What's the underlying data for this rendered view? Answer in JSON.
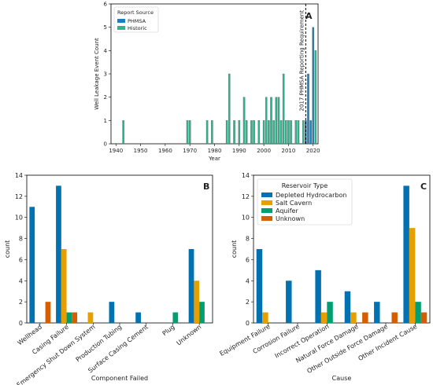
{
  "panels": {
    "A": {
      "letter": "A"
    },
    "B": {
      "letter": "B"
    },
    "C": {
      "letter": "C"
    }
  },
  "colors": {
    "phmsa": "#1a80bb",
    "historic": "#2fb58e",
    "depleted": "#0072b2",
    "salt": "#e69f00",
    "aquifer": "#009e73",
    "unknown": "#d55e00"
  },
  "chart_data": [
    {
      "id": "A",
      "type": "bar",
      "ylabel": "Well Leakage Event Count",
      "xlabel": "Year",
      "xlim": [
        1938,
        2022
      ],
      "ylim": [
        0,
        6
      ],
      "xticks": [
        1940,
        1950,
        1960,
        1970,
        1980,
        1990,
        2000,
        2010,
        2020
      ],
      "yticks": [
        0,
        1,
        2,
        3,
        4,
        5,
        6
      ],
      "legend_title": "Report Source",
      "legend_position": "top-left",
      "annotation": "2017 PHMSA Reporting Requirement",
      "annotation_x": 2017,
      "series": [
        {
          "name": "PHMSA",
          "x": [
            2017,
            2018,
            2019,
            2020
          ],
          "values": [
            1,
            3,
            1,
            5
          ]
        },
        {
          "name": "Historic",
          "x": [
            1943,
            1969,
            1970,
            1977,
            1979,
            1985,
            1986,
            1988,
            1990,
            1992,
            1993,
            1995,
            1996,
            1998,
            2000,
            2001,
            2002,
            2003,
            2004,
            2005,
            2006,
            2007,
            2008,
            2009,
            2010,
            2011,
            2013,
            2014,
            2016,
            2021
          ],
          "values": [
            1,
            1,
            1,
            1,
            1,
            1,
            3,
            1,
            1,
            2,
            1,
            1,
            1,
            1,
            1,
            2,
            1,
            2,
            1,
            2,
            2,
            1,
            3,
            1,
            1,
            1,
            1,
            1,
            1,
            4
          ]
        }
      ]
    },
    {
      "id": "B",
      "type": "bar",
      "xlabel": "Component Failed",
      "ylabel": "count",
      "ylim": [
        0,
        14
      ],
      "yticks": [
        0,
        2,
        4,
        6,
        8,
        10,
        12,
        14
      ],
      "categories": [
        "Wellhead",
        "Casing Failure",
        "Emergency Shut Down System",
        "Production Tubing",
        "Surface Casing Cement",
        "Plug",
        "Unknown"
      ],
      "series": [
        {
          "key": "depleted",
          "values": [
            11,
            13,
            0,
            2,
            1,
            0,
            7
          ]
        },
        {
          "key": "salt",
          "values": [
            0,
            7,
            1,
            0,
            0,
            0,
            4
          ]
        },
        {
          "key": "aquifer",
          "values": [
            0,
            1,
            0,
            0,
            0,
            1,
            2
          ]
        },
        {
          "key": "unknown",
          "values": [
            2,
            1,
            0,
            0,
            0,
            0,
            0
          ]
        }
      ]
    },
    {
      "id": "C",
      "type": "bar",
      "xlabel": "Cause",
      "ylabel": "count",
      "ylim": [
        0,
        14
      ],
      "yticks": [
        0,
        2,
        4,
        6,
        8,
        10,
        12,
        14
      ],
      "legend_title": "Reservoir Type",
      "legend_position": "top-left",
      "categories": [
        "Equipment Failure",
        "Corrosion Failure",
        "Incorrect Operation",
        "Natural Force Damage",
        "Other Outside Force Damage",
        "Other Incident Cause"
      ],
      "series": [
        {
          "name": "Depleted Hydrocarbon",
          "key": "depleted",
          "values": [
            7,
            4,
            5,
            3,
            2,
            13
          ]
        },
        {
          "name": "Salt Cavern",
          "key": "salt",
          "values": [
            1,
            0,
            1,
            1,
            0,
            9
          ]
        },
        {
          "name": "Aquifer",
          "key": "aquifer",
          "values": [
            0,
            0,
            2,
            0,
            0,
            2
          ]
        },
        {
          "name": "Unknown",
          "key": "unknown",
          "values": [
            0,
            0,
            0,
            1,
            1,
            1
          ]
        }
      ]
    }
  ]
}
